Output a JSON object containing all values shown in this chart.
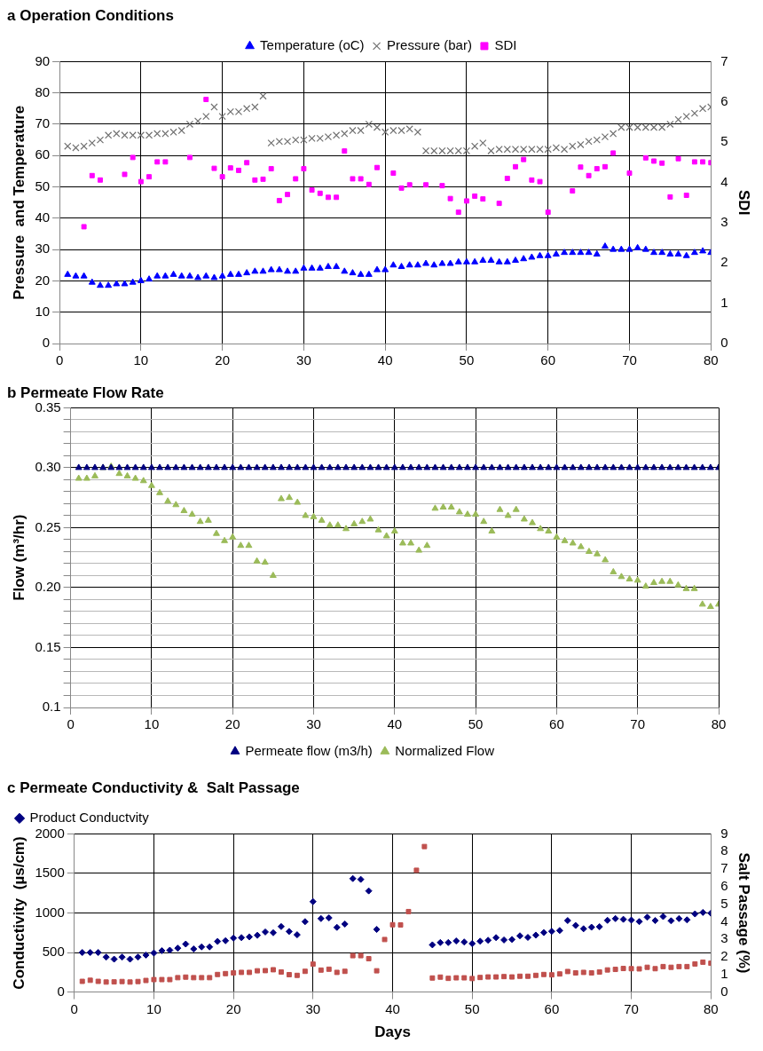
{
  "chart_data": [
    {
      "type": "scatter",
      "title": "a Operation Conditions",
      "ylabel": "Pressure  and Temperature",
      "y2label": "SDI",
      "legend": "top",
      "grid": true,
      "x": [
        1,
        2,
        3,
        4,
        5,
        6,
        7,
        8,
        9,
        10,
        11,
        12,
        13,
        14,
        15,
        16,
        17,
        18,
        19,
        20,
        21,
        22,
        23,
        24,
        25,
        26,
        27,
        28,
        29,
        30,
        31,
        32,
        33,
        34,
        35,
        36,
        37,
        38,
        39,
        40,
        41,
        42,
        43,
        44,
        45,
        46,
        47,
        48,
        49,
        50,
        51,
        52,
        53,
        54,
        55,
        56,
        57,
        58,
        59,
        60,
        61,
        62,
        63,
        64,
        65,
        66,
        67,
        68,
        69,
        70,
        71,
        72,
        73,
        74,
        75,
        76,
        77,
        78,
        79,
        80
      ],
      "xlim": [
        0,
        80
      ],
      "xticks": [
        0,
        10,
        20,
        30,
        40,
        50,
        60,
        70,
        80
      ],
      "ylim": [
        0,
        90
      ],
      "yticks": [
        0,
        10,
        20,
        30,
        40,
        50,
        60,
        70,
        80,
        90
      ],
      "y2lim": [
        0,
        7
      ],
      "y2ticks": [
        0,
        1,
        2,
        3,
        4,
        5,
        6,
        7
      ],
      "series": [
        {
          "name": "Temperature (oC)",
          "color": "#0000ff",
          "marker": "triangle",
          "values": [
            22,
            21.5,
            21.5,
            19.5,
            18.5,
            18.5,
            19,
            19,
            19.5,
            20,
            20.5,
            21.5,
            21.5,
            22,
            21.5,
            21.5,
            21,
            21.5,
            21,
            21.5,
            22,
            22,
            22.5,
            23,
            23,
            23.5,
            23.5,
            23,
            23,
            24,
            24,
            24,
            24.5,
            24.5,
            23,
            22.5,
            22,
            22,
            23.5,
            23.5,
            25,
            24.5,
            25,
            25,
            25.5,
            25,
            25.5,
            25.5,
            26,
            26,
            26,
            26.5,
            26.5,
            26,
            26,
            26.5,
            27,
            27.5,
            28,
            28,
            28.5,
            29,
            29,
            29,
            29,
            28.5,
            31,
            30,
            30,
            30,
            30.5,
            30,
            29,
            29,
            28.5,
            28.5,
            28,
            29,
            29.5,
            29
          ]
        },
        {
          "name": "Pressure (bar)",
          "color": "#707070",
          "marker": "cross",
          "values": [
            63,
            62.5,
            63,
            64,
            65,
            66.5,
            67,
            66.5,
            66.5,
            66.5,
            66.5,
            67,
            67,
            67.5,
            68,
            70,
            71,
            72.5,
            75.5,
            72.5,
            74,
            74,
            75,
            75.5,
            79,
            64,
            64.5,
            64.5,
            65,
            65,
            65.5,
            65.5,
            66,
            66.5,
            67,
            68,
            68,
            70,
            69,
            67.5,
            68,
            68,
            68.5,
            67.5,
            61.5,
            61.5,
            61.5,
            61.5,
            61.5,
            61.5,
            63,
            64,
            61.5,
            62,
            62,
            62,
            62,
            62,
            62,
            62,
            62.5,
            62,
            63,
            63.5,
            64.5,
            65,
            66,
            67,
            69,
            69,
            69,
            69,
            69,
            69,
            70,
            71.5,
            72.5,
            73.5,
            75,
            75.5
          ]
        },
        {
          "name": "SDI",
          "color": "#ff00ff",
          "marker": "square",
          "axis": "y2",
          "x": [
            3,
            4,
            5,
            8,
            9,
            10,
            11,
            12,
            13,
            16,
            18,
            19,
            20,
            21,
            22,
            23,
            24,
            25,
            26,
            27,
            28,
            29,
            30,
            31,
            32,
            33,
            34,
            35,
            36,
            37,
            38,
            39,
            41,
            42,
            43,
            45,
            47,
            48,
            49,
            50,
            51,
            52,
            54,
            55,
            56,
            57,
            58,
            59,
            60,
            63,
            64,
            65,
            66,
            67,
            68,
            70,
            72,
            73,
            74,
            75,
            76,
            77,
            78,
            79,
            80
          ],
          "values": [
            2.9,
            4.17,
            4.06,
            4.2,
            4.62,
            4.02,
            4.14,
            4.51,
            4.51,
            4.62,
            6.06,
            4.35,
            4.14,
            4.36,
            4.3,
            4.49,
            4.06,
            4.08,
            4.34,
            3.55,
            3.7,
            4.09,
            4.34,
            3.81,
            3.73,
            3.63,
            3.63,
            4.78,
            4.09,
            4.09,
            3.95,
            4.37,
            4.23,
            3.86,
            3.94,
            3.94,
            3.92,
            3.6,
            3.26,
            3.54,
            3.66,
            3.59,
            3.48,
            4.1,
            4.39,
            4.57,
            4.06,
            4.02,
            3.26,
            3.79,
            4.38,
            4.17,
            4.34,
            4.39,
            4.73,
            4.23,
            4.61,
            4.53,
            4.48,
            3.64,
            4.59,
            3.68,
            4.51,
            4.51,
            4.49
          ]
        }
      ]
    },
    {
      "type": "scatter",
      "title": "b Permeate Flow Rate",
      "ylabel": "Flow (m³/hr)",
      "legend": "bottom",
      "grid": true,
      "x": [
        1,
        2,
        3,
        4,
        5,
        6,
        7,
        8,
        9,
        10,
        11,
        12,
        13,
        14,
        15,
        16,
        17,
        18,
        19,
        20,
        21,
        22,
        23,
        24,
        25,
        26,
        27,
        28,
        29,
        30,
        31,
        32,
        33,
        34,
        35,
        36,
        37,
        38,
        39,
        40,
        41,
        42,
        43,
        44,
        45,
        46,
        47,
        48,
        49,
        50,
        51,
        52,
        53,
        54,
        55,
        56,
        57,
        58,
        59,
        60,
        61,
        62,
        63,
        64,
        65,
        66,
        67,
        68,
        69,
        70,
        71,
        72,
        73,
        74,
        75,
        76,
        77,
        78,
        79,
        80
      ],
      "xlim": [
        0,
        80
      ],
      "xticks": [
        0,
        10,
        20,
        30,
        40,
        50,
        60,
        70,
        80
      ],
      "ylim": [
        0.1,
        0.35
      ],
      "yticks": [
        0.1,
        {
          "value": 0.11,
          "label": null
        },
        {
          "value": 0.12,
          "label": null
        },
        {
          "value": 0.13,
          "label": null
        },
        {
          "value": 0.14,
          "label": null
        },
        {
          "value": 0.15,
          "label": "0.15"
        },
        {
          "value": 0.16,
          "label": null
        },
        {
          "value": 0.17,
          "label": null
        },
        {
          "value": 0.18,
          "label": null
        },
        {
          "value": 0.19,
          "label": null
        },
        {
          "value": 0.2,
          "label": "0.20"
        },
        {
          "value": 0.21,
          "label": null
        },
        {
          "value": 0.22,
          "label": null
        },
        {
          "value": 0.23,
          "label": null
        },
        {
          "value": 0.24,
          "label": null
        },
        0.25,
        {
          "value": 0.26,
          "label": null
        },
        {
          "value": 0.27,
          "label": null
        },
        {
          "value": 0.28,
          "label": null
        },
        {
          "value": 0.29,
          "label": null
        },
        {
          "value": 0.3,
          "label": "0.30"
        },
        {
          "value": 0.31,
          "label": null
        },
        {
          "value": 0.32,
          "label": null
        },
        {
          "value": 0.33,
          "label": null
        },
        {
          "value": 0.34,
          "label": null
        },
        0.35
      ],
      "series": [
        {
          "name": "Permeate flow (m3/h)",
          "color": "#000080",
          "marker": "triangle",
          "values": [
            0.3,
            0.3,
            0.3,
            0.3,
            0.3,
            0.3,
            0.3,
            0.3,
            0.3,
            0.3,
            0.3,
            0.3,
            0.3,
            0.3,
            0.3,
            0.3,
            0.3,
            0.3,
            0.3,
            0.3,
            0.3,
            0.3,
            0.3,
            0.3,
            0.3,
            0.3,
            0.3,
            0.3,
            0.3,
            0.3,
            0.3,
            0.3,
            0.3,
            0.3,
            0.3,
            0.3,
            0.3,
            0.3,
            0.3,
            0.3,
            0.3,
            0.3,
            0.3,
            0.3,
            0.3,
            0.3,
            0.3,
            0.3,
            0.3,
            0.3,
            0.3,
            0.3,
            0.3,
            0.3,
            0.3,
            0.3,
            0.3,
            0.3,
            0.3,
            0.3,
            0.3,
            0.3,
            0.3,
            0.3,
            0.3,
            0.3,
            0.3,
            0.3,
            0.3,
            0.3,
            0.3,
            0.3,
            0.3,
            0.3,
            0.3,
            0.3,
            0.3,
            0.3,
            0.3,
            0.3
          ]
        },
        {
          "name": "Normalized Flow",
          "color": "#9bbb59",
          "marker": "triangle",
          "values": [
            0.291,
            0.291,
            0.293,
            0.3,
            0.301,
            0.295,
            0.293,
            0.291,
            0.289,
            0.285,
            0.279,
            0.272,
            0.269,
            0.264,
            0.261,
            0.255,
            0.256,
            0.245,
            0.239,
            0.242,
            0.235,
            0.235,
            0.222,
            0.221,
            0.21,
            0.274,
            0.275,
            0.271,
            0.26,
            0.259,
            0.256,
            0.252,
            0.252,
            0.249,
            0.253,
            0.255,
            0.257,
            0.248,
            0.243,
            0.247,
            0.237,
            0.237,
            0.231,
            0.235,
            0.266,
            0.267,
            0.267,
            0.263,
            0.261,
            0.261,
            0.255,
            0.247,
            0.265,
            0.26,
            0.265,
            0.257,
            0.254,
            0.249,
            0.247,
            0.242,
            0.239,
            0.237,
            0.234,
            0.23,
            0.228,
            0.223,
            0.213,
            0.209,
            0.207,
            0.206,
            0.201,
            0.204,
            0.205,
            0.205,
            0.202,
            0.199,
            0.199,
            0.186,
            0.184,
            0.186
          ]
        }
      ]
    },
    {
      "type": "scatter",
      "title": "c Permeate Conductivity &  Salt Passage",
      "xlabel": "Days",
      "ylabel": "Conductivity  (µs/cm)",
      "y2label": "Salt Passage (%)",
      "legend": "top left",
      "grid": true,
      "x": [
        1,
        2,
        3,
        4,
        5,
        6,
        7,
        8,
        9,
        10,
        11,
        12,
        13,
        14,
        15,
        16,
        17,
        18,
        19,
        20,
        21,
        22,
        23,
        24,
        25,
        26,
        27,
        28,
        29,
        30,
        31,
        32,
        33,
        34,
        35,
        36,
        37,
        38,
        39,
        40,
        41,
        42,
        43,
        44,
        45,
        46,
        47,
        48,
        49,
        50,
        51,
        52,
        53,
        54,
        55,
        56,
        57,
        58,
        59,
        60,
        61,
        62,
        63,
        64,
        65,
        66,
        67,
        68,
        69,
        70,
        71,
        72,
        73,
        74,
        75,
        76,
        77,
        78,
        79,
        80
      ],
      "xlim": [
        0,
        80
      ],
      "xticks": [
        0,
        10,
        20,
        30,
        40,
        50,
        60,
        70,
        80
      ],
      "ylim": [
        0,
        2000
      ],
      "yticks": [
        0,
        500,
        1000,
        1500,
        2000
      ],
      "y2lim": [
        0,
        9
      ],
      "y2ticks": [
        0,
        1,
        2,
        3,
        4,
        5,
        6,
        7,
        8,
        9
      ],
      "series": [
        {
          "name": "Product Conductvity",
          "color": "#000080",
          "marker": "diamond",
          "values": [
            500,
            500,
            500,
            442,
            416,
            442,
            416,
            442,
            468,
            494,
            523,
            529,
            555,
            607,
            545,
            571,
            571,
            640,
            649,
            682,
            688,
            698,
            718,
            760,
            750,
            828,
            766,
            724,
            890,
            1143,
            929,
            938,
            818,
            860,
            1435,
            1425,
            1279,
            792,
            null,
            null,
            null,
            null,
            null,
            null,
            597,
            626,
            626,
            646,
            633,
            613,
            643,
            655,
            688,
            659,
            665,
            711,
            691,
            720,
            752,
            768,
            778,
            904,
            842,
            800,
            820,
            826,
            907,
            929,
            920,
            910,
            891,
            946,
            904,
            955,
            901,
            929,
            913,
            988,
            1007,
            997
          ]
        },
        {
          "color": "#c0504d",
          "marker": "square",
          "axis": "y2",
          "values": [
            0.61,
            0.67,
            0.61,
            0.57,
            0.58,
            0.6,
            0.57,
            0.6,
            0.66,
            0.71,
            0.71,
            0.71,
            0.82,
            0.85,
            0.82,
            0.82,
            0.82,
            1.0,
            1.05,
            1.09,
            1.12,
            1.12,
            1.21,
            1.22,
            1.27,
            1.14,
            0.99,
            0.95,
            1.18,
            1.59,
            1.25,
            1.3,
            1.12,
            1.18,
            2.07,
            2.07,
            1.9,
            1.21,
            2.99,
            3.83,
            3.82,
            4.58,
            6.93,
            8.28,
            0.8,
            0.85,
            0.78,
            0.81,
            0.81,
            0.77,
            0.83,
            0.86,
            0.86,
            0.88,
            0.86,
            0.9,
            0.9,
            0.95,
            1.0,
            0.98,
            1.03,
            1.17,
            1.09,
            1.12,
            1.09,
            1.14,
            1.26,
            1.29,
            1.34,
            1.33,
            1.32,
            1.41,
            1.33,
            1.45,
            1.41,
            1.45,
            1.45,
            1.6,
            1.7,
            1.64
          ]
        }
      ]
    }
  ]
}
